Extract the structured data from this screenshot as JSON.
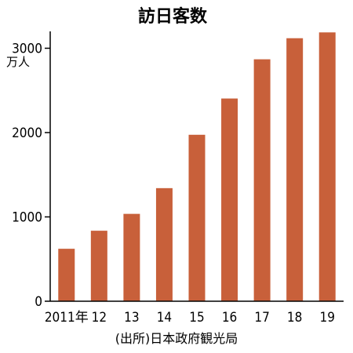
{
  "chart_data": {
    "type": "bar",
    "title": "訪日客数",
    "unit": "万人",
    "categories": [
      "2011年",
      "12",
      "13",
      "14",
      "15",
      "16",
      "17",
      "18",
      "19"
    ],
    "values": [
      622,
      836,
      1036,
      1341,
      1974,
      2404,
      2869,
      3119,
      3188
    ],
    "ylim": [
      0,
      3200
    ],
    "yticks": [
      {
        "value": 0,
        "label": "0"
      },
      {
        "value": 1000,
        "label": "1000"
      },
      {
        "value": 2000,
        "label": "2000"
      },
      {
        "value": 3000,
        "label": "3000"
      }
    ],
    "grid": false,
    "bar_color": "#c8603a",
    "source": "(出所)日本政府観光局"
  }
}
